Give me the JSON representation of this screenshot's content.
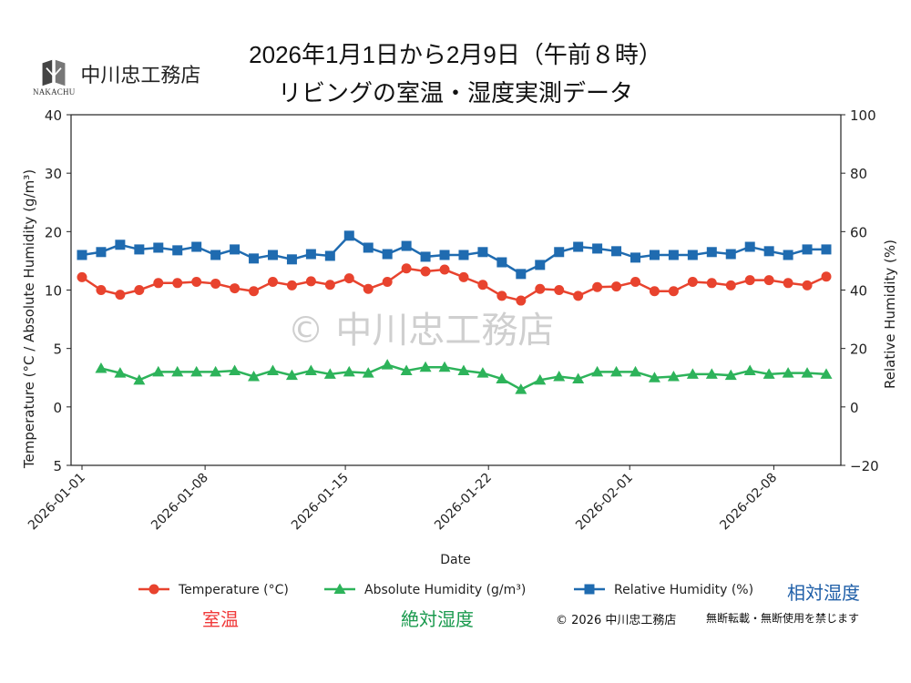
{
  "header": {
    "title_line1": "2026年1月1日から2月9日（午前８時）",
    "title_line2": "リビングの室温・湿度実測データ",
    "logo_name": "中川忠工務店",
    "logo_sub": "NAKACHU"
  },
  "watermark": "© 中川忠工務店",
  "annotations": {
    "temp_jp": "室温",
    "abs_jp": "絶対湿度",
    "rel_jp": "相対湿度",
    "copyright": "© 2026 中川忠工務店",
    "notice": "無断転載・無断使用を禁じます"
  },
  "colors": {
    "temperature": "#e8432e",
    "absolute": "#2db35a",
    "relative": "#1f6bb0",
    "temp_jp": "#f03a3a",
    "abs_jp": "#1a9a4e",
    "rel_jp": "#1f5fa8"
  },
  "chart_data": {
    "type": "line",
    "xlabel": "Date",
    "ylabel_left": "Temperature (°C / Absolute Humidity (g/m³)",
    "ylabel_right": "Relative Humidity (%)",
    "x_ticks": [
      "2026-01-01",
      "2026-01-08",
      "2026-01-15",
      "2026-01-22",
      "2026-02-01",
      "2026-02-08"
    ],
    "y_left_ticks": [
      40,
      30,
      20,
      10,
      5,
      0,
      -5
    ],
    "y_left_tick_labels": [
      "40",
      "30",
      "20",
      "10",
      "5",
      "0",
      "5"
    ],
    "y_right_ticks": [
      100,
      80,
      60,
      40,
      20,
      0,
      -20
    ],
    "y_right_tick_labels": [
      "100",
      "80",
      "60",
      "40",
      "20",
      "0",
      "−20"
    ],
    "ylim_right": [
      -20,
      100
    ],
    "grid": false,
    "legend_placement": "bottom",
    "series": [
      {
        "name": "Temperature (°C)",
        "axis": "left",
        "marker": "circle",
        "values": [
          12.2,
          10.0,
          9.6,
          10.0,
          11.2,
          11.2,
          11.4,
          11.1,
          10.3,
          9.9,
          11.4,
          10.8,
          11.5,
          10.9,
          12.0,
          10.2,
          11.4,
          13.7,
          13.2,
          13.5,
          12.2,
          10.9,
          9.5,
          9.1,
          10.2,
          10.0,
          9.5,
          10.5,
          10.6,
          11.4,
          9.9,
          9.9,
          11.4,
          11.2,
          10.8,
          11.7,
          11.7,
          11.2,
          10.8,
          12.3
        ]
      },
      {
        "name": "Absolute Humidity (g/m³)",
        "axis": "left",
        "marker": "triangle",
        "values": [
          null,
          3.3,
          2.9,
          2.3,
          3.0,
          3.0,
          3.0,
          3.0,
          3.1,
          2.6,
          3.1,
          2.7,
          3.1,
          2.8,
          3.0,
          2.9,
          3.6,
          3.1,
          3.4,
          3.4,
          3.1,
          2.9,
          2.4,
          1.5,
          2.3,
          2.6,
          2.4,
          3.0,
          3.0,
          3.0,
          2.5,
          2.6,
          2.8,
          2.8,
          2.7,
          3.1,
          2.8,
          2.9,
          2.9,
          2.8
        ]
      },
      {
        "name": "Relative Humidity (%)",
        "axis": "right",
        "marker": "square",
        "values": [
          52.0,
          53.0,
          55.5,
          53.9,
          54.5,
          53.6,
          54.8,
          52.0,
          53.9,
          50.8,
          52.0,
          50.5,
          52.3,
          51.7,
          58.6,
          54.5,
          52.3,
          55.1,
          51.4,
          52.0,
          52.0,
          53.0,
          49.5,
          45.5,
          48.6,
          53.0,
          54.8,
          54.2,
          53.3,
          51.1,
          52.0,
          52.0,
          52.0,
          53.0,
          52.3,
          54.8,
          53.3,
          52.0,
          53.9,
          53.9
        ]
      }
    ]
  }
}
